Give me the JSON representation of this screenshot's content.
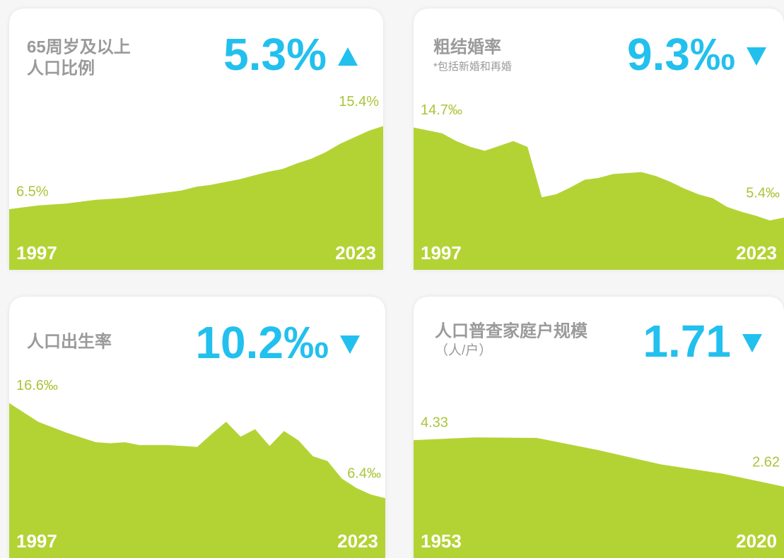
{
  "chart_data": [
    {
      "type": "area",
      "title": [
        "65周岁及以上",
        "人口比例"
      ],
      "headline": "5.3%",
      "trend": "up",
      "color": "#b3d335",
      "categories": [
        "1997",
        null,
        null,
        null,
        null,
        null,
        null,
        null,
        null,
        null,
        null,
        null,
        null,
        null,
        null,
        null,
        null,
        null,
        null,
        null,
        null,
        null,
        null,
        null,
        null,
        null,
        "2023"
      ],
      "values": [
        6.5,
        6.7,
        6.9,
        7.0,
        7.1,
        7.3,
        7.5,
        7.6,
        7.7,
        7.9,
        8.1,
        8.3,
        8.5,
        8.9,
        9.1,
        9.4,
        9.7,
        10.1,
        10.5,
        10.8,
        11.4,
        11.9,
        12.6,
        13.5,
        14.2,
        14.9,
        15.4
      ],
      "value_labels": [
        "6.5%",
        null,
        null,
        null,
        null,
        null,
        null,
        null,
        null,
        null,
        null,
        null,
        null,
        null,
        null,
        null,
        null,
        null,
        null,
        null,
        null,
        null,
        null,
        null,
        null,
        null,
        "15.4%"
      ],
      "ylim": [
        0,
        28
      ]
    },
    {
      "type": "area",
      "title": [
        "粗结婚率"
      ],
      "subtitle": "*包括新婚和再婚",
      "headline": "9.3‰",
      "trend": "down",
      "color": "#b3d335",
      "categories": [
        "1997",
        null,
        null,
        null,
        null,
        null,
        null,
        null,
        null,
        null,
        null,
        null,
        null,
        null,
        null,
        null,
        null,
        null,
        null,
        null,
        null,
        null,
        null,
        null,
        null,
        null,
        "2023"
      ],
      "values": [
        14.7,
        14.4,
        14.1,
        13.3,
        12.7,
        12.3,
        12.8,
        13.3,
        12.7,
        7.5,
        7.8,
        8.5,
        9.3,
        9.5,
        9.9,
        10.0,
        10.1,
        9.7,
        9.1,
        8.4,
        7.8,
        7.4,
        6.5,
        6.0,
        5.6,
        5.1,
        5.4
      ],
      "value_labels": [
        "14.7‰",
        null,
        null,
        null,
        null,
        null,
        null,
        null,
        null,
        null,
        null,
        null,
        null,
        null,
        null,
        null,
        null,
        null,
        null,
        null,
        null,
        null,
        null,
        null,
        null,
        null,
        "5.4‰"
      ],
      "ylim": [
        0,
        27
      ]
    },
    {
      "type": "area",
      "title": [
        "人口出生率"
      ],
      "headline": "10.2‰",
      "trend": "down",
      "color": "#b3d335",
      "categories": [
        "1997",
        null,
        null,
        null,
        null,
        null,
        null,
        null,
        null,
        null,
        null,
        null,
        null,
        null,
        null,
        null,
        null,
        null,
        null,
        null,
        null,
        null,
        null,
        null,
        null,
        null,
        "2023"
      ],
      "values": [
        16.6,
        15.6,
        14.6,
        14.0,
        13.4,
        12.9,
        12.4,
        12.3,
        12.4,
        12.1,
        12.1,
        12.1,
        12.0,
        11.9,
        13.3,
        14.6,
        13.0,
        13.8,
        12.0,
        13.6,
        12.6,
        10.9,
        10.4,
        8.5,
        7.5,
        6.8,
        6.4
      ],
      "value_labels": [
        "16.6‰",
        null,
        null,
        null,
        null,
        null,
        null,
        null,
        null,
        null,
        null,
        null,
        null,
        null,
        null,
        null,
        null,
        null,
        null,
        null,
        null,
        null,
        null,
        null,
        null,
        null,
        "6.4‰"
      ],
      "ylim": [
        0,
        28
      ]
    },
    {
      "type": "area",
      "title": [
        "人口普查家庭户规模"
      ],
      "subtitle": "（人/户）",
      "headline": "1.71",
      "trend": "down",
      "color": "#b3d335",
      "categories": [
        "1953",
        null,
        null,
        null,
        null,
        null,
        "2020"
      ],
      "values": [
        4.33,
        4.43,
        4.41,
        3.96,
        3.44,
        3.1,
        2.62
      ],
      "value_labels": [
        "4.33",
        null,
        null,
        null,
        null,
        null,
        "2.62"
      ],
      "ylim": [
        0,
        9.6
      ]
    }
  ]
}
